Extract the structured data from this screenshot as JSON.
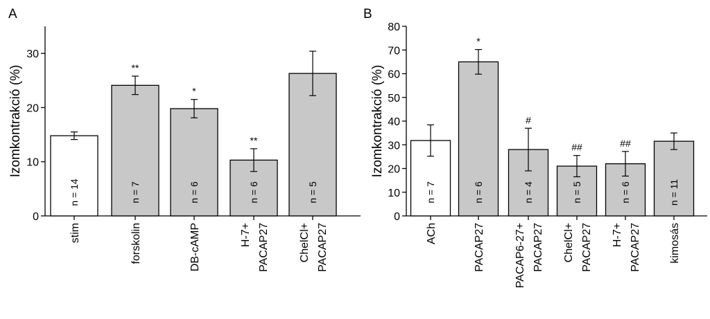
{
  "chart_data": [
    {
      "panel_label": "A",
      "type": "bar",
      "ylabel": "Izomkontrakció (%)",
      "ylim": [
        0,
        35
      ],
      "yticks": [
        0,
        10,
        20,
        30
      ],
      "categories": [
        [
          "stim"
        ],
        [
          "forskolin"
        ],
        [
          "DB-cAMP"
        ],
        [
          "H-7+",
          "PACAP27"
        ],
        [
          "ChelCl+",
          "PACAP27"
        ]
      ],
      "values": [
        14.8,
        24.1,
        19.8,
        10.3,
        26.3
      ],
      "errors": [
        0.7,
        1.7,
        1.7,
        2.1,
        4.1
      ],
      "n_labels": [
        "n = 14",
        "n = 7",
        "n = 6",
        "n = 6",
        "n = 5"
      ],
      "significance": [
        "",
        "**",
        "*",
        "**",
        ""
      ],
      "bar_colors": [
        "#ffffff",
        "#c8c8c8",
        "#c8c8c8",
        "#c8c8c8",
        "#c8c8c8"
      ]
    },
    {
      "panel_label": "B",
      "type": "bar",
      "ylabel": "Izomkontrakció (%)",
      "ylim": [
        0,
        80
      ],
      "yticks": [
        0,
        10,
        20,
        30,
        40,
        50,
        60,
        70,
        80
      ],
      "categories": [
        [
          "ACh"
        ],
        [
          "PACAP27"
        ],
        [
          "PACAP6-27+",
          "PACAP27"
        ],
        [
          "ChelCl+",
          "PACAP27"
        ],
        [
          "H-7+",
          "PACAP27"
        ],
        [
          "kimosás"
        ]
      ],
      "values": [
        31.8,
        65.0,
        28.0,
        21.0,
        22.0,
        31.5
      ],
      "errors": [
        6.6,
        5.2,
        9.0,
        4.5,
        5.2,
        3.5
      ],
      "n_labels": [
        "n = 7",
        "n = 6",
        "n = 4",
        "n = 5",
        "n = 6",
        "n = 11"
      ],
      "significance": [
        "",
        "*",
        "#",
        "##",
        "##",
        ""
      ],
      "bar_colors": [
        "#ffffff",
        "#c8c8c8",
        "#c8c8c8",
        "#c8c8c8",
        "#c8c8c8",
        "#c8c8c8"
      ]
    }
  ]
}
